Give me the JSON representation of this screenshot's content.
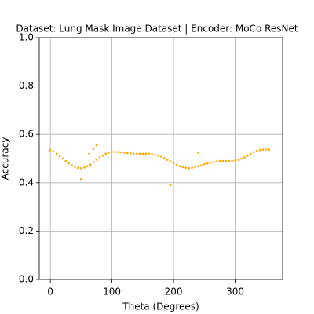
{
  "chart_data": {
    "type": "scatter",
    "title": "Dataset: Lung Mask Image Dataset | Encoder: MoCo ResNet",
    "x_label": "Theta (Degrees)",
    "y_label": "Accuracy",
    "color": "#ffa500",
    "grid": true,
    "xlim": [
      -18,
      377
    ],
    "ylim": [
      0,
      1.0
    ],
    "xticks": [
      0,
      100,
      200,
      300
    ],
    "yticks": [
      {
        "value": 0,
        "label": "0.0"
      },
      0.2,
      0.4,
      0.6,
      0.8,
      {
        "value": 1,
        "label": "1.0"
      }
    ],
    "x": [
      0,
      5,
      10,
      15,
      20,
      25,
      30,
      35,
      40,
      45,
      50,
      55,
      60,
      65,
      70,
      75,
      80,
      85,
      90,
      95,
      100,
      105,
      110,
      115,
      120,
      125,
      130,
      135,
      140,
      145,
      150,
      155,
      160,
      165,
      170,
      175,
      180,
      185,
      190,
      195,
      200,
      205,
      210,
      215,
      220,
      225,
      230,
      235,
      240,
      245,
      250,
      255,
      260,
      265,
      270,
      275,
      280,
      285,
      290,
      295,
      300,
      305,
      310,
      315,
      320,
      325,
      330,
      335,
      340,
      345,
      350,
      355,
      50,
      63,
      70,
      75,
      195,
      240
    ],
    "values": [
      0.535,
      0.53,
      0.52,
      0.51,
      0.5,
      0.49,
      0.48,
      0.472,
      0.466,
      0.462,
      0.46,
      0.463,
      0.468,
      0.475,
      0.485,
      0.495,
      0.505,
      0.512,
      0.52,
      0.525,
      0.528,
      0.527,
      0.527,
      0.526,
      0.525,
      0.523,
      0.522,
      0.52,
      0.52,
      0.52,
      0.52,
      0.52,
      0.52,
      0.518,
      0.515,
      0.512,
      0.508,
      0.502,
      0.495,
      0.488,
      0.48,
      0.473,
      0.468,
      0.465,
      0.462,
      0.46,
      0.462,
      0.465,
      0.468,
      0.472,
      0.477,
      0.48,
      0.483,
      0.486,
      0.488,
      0.49,
      0.49,
      0.49,
      0.49,
      0.49,
      0.492,
      0.495,
      0.5,
      0.505,
      0.512,
      0.52,
      0.527,
      0.532,
      0.535,
      0.537,
      0.538,
      0.537,
      0.415,
      0.52,
      0.54,
      0.555,
      0.39,
      0.525
    ]
  }
}
